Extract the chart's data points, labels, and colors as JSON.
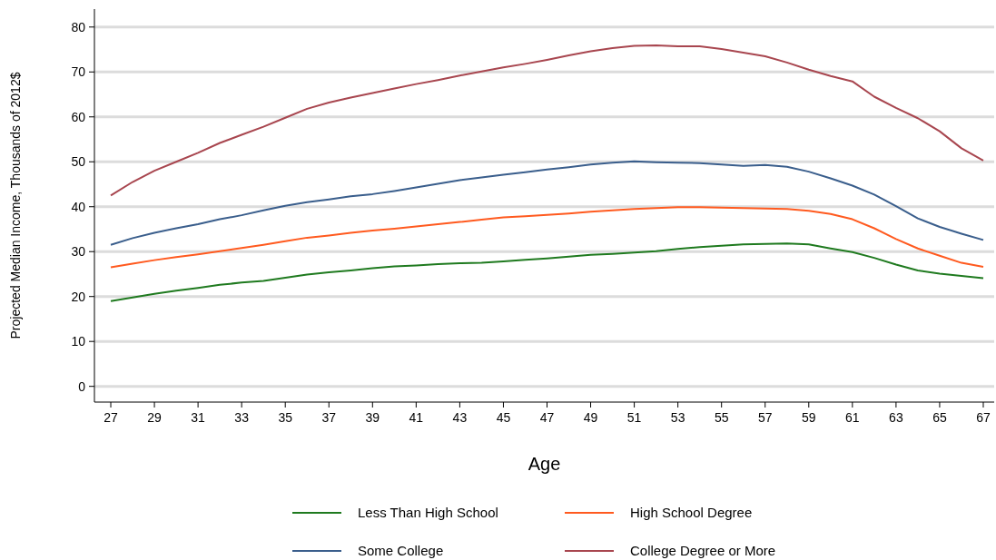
{
  "chart_data": {
    "type": "line",
    "xlabel": "Age",
    "ylabel": "Projected Median Income, Thousands of 2012$",
    "x": [
      27,
      28,
      29,
      30,
      31,
      32,
      33,
      34,
      35,
      36,
      37,
      38,
      39,
      40,
      41,
      42,
      43,
      44,
      45,
      46,
      47,
      48,
      49,
      50,
      51,
      52,
      53,
      54,
      55,
      56,
      57,
      58,
      59,
      60,
      61,
      62,
      63,
      64,
      65,
      66,
      67
    ],
    "series": [
      {
        "name": "Less Than High School",
        "color": "#1f7a1f",
        "values": [
          19,
          19.8,
          20.6,
          21.3,
          21.9,
          22.6,
          23.1,
          23.5,
          24.2,
          24.9,
          25.4,
          25.8,
          26.3,
          26.7,
          26.9,
          27.2,
          27.4,
          27.5,
          27.8,
          28.2,
          28.5,
          28.9,
          29.3,
          29.5,
          29.8,
          30.1,
          30.6,
          31,
          31.3,
          31.6,
          31.7,
          31.8,
          31.6,
          30.7,
          29.9,
          28.6,
          27.1,
          25.8,
          25.1,
          24.6,
          24.1
        ]
      },
      {
        "name": "High School Degree",
        "color": "#ff5a1f",
        "values": [
          26.5,
          27.3,
          28.1,
          28.8,
          29.4,
          30.1,
          30.8,
          31.5,
          32.3,
          33.1,
          33.6,
          34.2,
          34.7,
          35.1,
          35.6,
          36.1,
          36.6,
          37.1,
          37.6,
          37.9,
          38.2,
          38.5,
          38.9,
          39.2,
          39.5,
          39.7,
          39.9,
          39.9,
          39.8,
          39.7,
          39.6,
          39.5,
          39.1,
          38.4,
          37.2,
          35.2,
          32.8,
          30.7,
          29.1,
          27.5,
          26.6
        ]
      },
      {
        "name": "Some College",
        "color": "#3a5e8c",
        "values": [
          31.5,
          33,
          34.2,
          35.2,
          36.1,
          37.2,
          38.1,
          39.2,
          40.2,
          41,
          41.6,
          42.3,
          42.8,
          43.5,
          44.3,
          45.1,
          45.9,
          46.5,
          47.1,
          47.7,
          48.3,
          48.8,
          49.4,
          49.8,
          50.1,
          49.9,
          49.8,
          49.7,
          49.4,
          49.1,
          49.3,
          48.9,
          47.8,
          46.3,
          44.7,
          42.7,
          40.1,
          37.4,
          35.5,
          34,
          32.6
        ]
      },
      {
        "name": "College Degree or More",
        "color": "#a8464f",
        "values": [
          42.5,
          45.5,
          48,
          50,
          52,
          54.2,
          56,
          57.8,
          59.8,
          61.8,
          63.2,
          64.3,
          65.3,
          66.3,
          67.3,
          68.2,
          69.2,
          70.1,
          71,
          71.8,
          72.7,
          73.7,
          74.6,
          75.3,
          75.8,
          75.9,
          75.7,
          75.7,
          75.1,
          74.3,
          73.5,
          72.1,
          70.5,
          69.1,
          67.9,
          64.5,
          62,
          59.7,
          56.8,
          53,
          50.3
        ]
      }
    ],
    "xlim": [
      26.25,
      67.5
    ],
    "xticks": [
      27,
      29,
      31,
      33,
      35,
      37,
      39,
      41,
      43,
      45,
      47,
      49,
      51,
      53,
      55,
      57,
      59,
      61,
      63,
      65,
      67
    ],
    "ylim": [
      -3.5,
      84
    ],
    "yticks": [
      0,
      10,
      20,
      30,
      40,
      50,
      60,
      70,
      80
    ],
    "grid": "y",
    "legend": "bottom",
    "marker": "none",
    "line_style": "solid"
  }
}
